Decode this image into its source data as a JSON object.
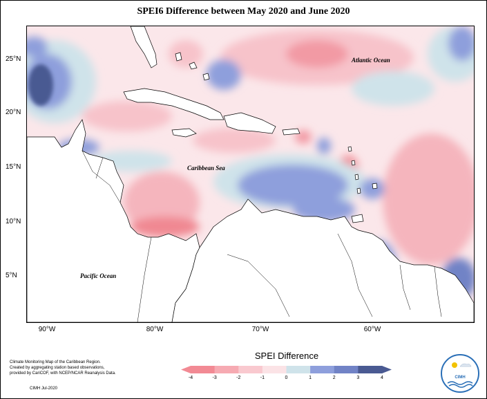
{
  "title": "SPEI6 Difference between May 2020 and June 2020",
  "y_ticks": [
    "25°N",
    "20°N",
    "15°N",
    "10°N",
    "5°N"
  ],
  "x_ticks": [
    "90°W",
    "80°W",
    "70°W",
    "60°W"
  ],
  "map_labels": {
    "atlantic": "Atlantic Ocean",
    "caribbean": "Caribbean Sea",
    "pacific": "Pacific Ocean"
  },
  "legend": {
    "title": "SPEI Difference",
    "ticks": [
      "-4",
      "-3",
      "-2",
      "-1",
      "0",
      "1",
      "2",
      "3",
      "4"
    ],
    "colors": [
      "#f28a94",
      "#f6aab2",
      "#f9c9cf",
      "#fbe3e6",
      "#cfe3ea",
      "#8e9fdc",
      "#7183c6",
      "#4a5a92"
    ]
  },
  "credits": {
    "line1": "Climate Monitoring Map of the Caribbean Region.",
    "line2": "Created by aggregating station based observations,",
    "line3": "provided by CariCOF, with NCEP/NCAR Reanalysis Data.",
    "stamp": "CIMH Jul-2020"
  },
  "logo": {
    "text": "CIMH"
  }
}
